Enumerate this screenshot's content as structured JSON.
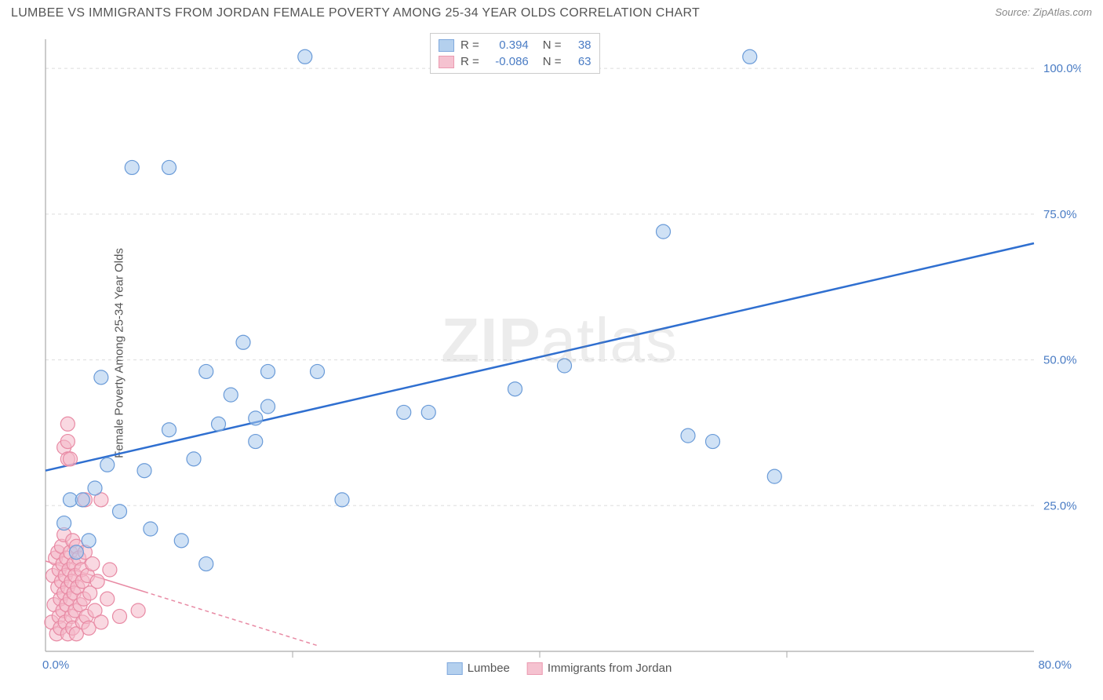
{
  "title": "LUMBEE VS IMMIGRANTS FROM JORDAN FEMALE POVERTY AMONG 25-34 YEAR OLDS CORRELATION CHART",
  "source": "Source: ZipAtlas.com",
  "watermark_a": "ZIP",
  "watermark_b": "atlas",
  "y_axis_label": "Female Poverty Among 25-34 Year Olds",
  "chart": {
    "type": "scatter",
    "background_color": "#ffffff",
    "grid_color": "#dddddd",
    "grid_dash": "4,4",
    "axis_line_color": "#aaaaaa",
    "tick_label_color": "#4a7cc4",
    "tick_fontsize": 15,
    "label_fontsize": 15,
    "label_color": "#555555",
    "xlim": [
      0,
      80
    ],
    "ylim": [
      0,
      105
    ],
    "x_ticks_labeled": [
      {
        "v": 0,
        "label": "0.0%"
      },
      {
        "v": 80,
        "label": "80.0%"
      }
    ],
    "x_ticks_unlabeled": [
      20,
      40,
      60
    ],
    "y_ticks": [
      {
        "v": 25,
        "label": "25.0%"
      },
      {
        "v": 50,
        "label": "50.0%"
      },
      {
        "v": 75,
        "label": "75.0%"
      },
      {
        "v": 100,
        "label": "100.0%"
      }
    ],
    "series": [
      {
        "name": "Lumbee",
        "fill_color": "#a8c8ec",
        "fill_opacity": 0.55,
        "stroke_color": "#6a9bd8",
        "stroke_width": 1.2,
        "marker_radius": 9,
        "R_label": "R =",
        "R": "0.394",
        "N_label": "N =",
        "N": "38",
        "trend": {
          "x1": 0,
          "y1": 31,
          "x2": 80,
          "y2": 70,
          "color": "#2f6fd0",
          "width": 2.5,
          "dash": "none"
        },
        "points": [
          {
            "x": 1.5,
            "y": 22
          },
          {
            "x": 2,
            "y": 26
          },
          {
            "x": 2.5,
            "y": 17
          },
          {
            "x": 3,
            "y": 26
          },
          {
            "x": 3.5,
            "y": 19
          },
          {
            "x": 4,
            "y": 28
          },
          {
            "x": 4.5,
            "y": 47
          },
          {
            "x": 5,
            "y": 32
          },
          {
            "x": 6,
            "y": 24
          },
          {
            "x": 7,
            "y": 83
          },
          {
            "x": 8,
            "y": 31
          },
          {
            "x": 8.5,
            "y": 21
          },
          {
            "x": 10,
            "y": 83
          },
          {
            "x": 10,
            "y": 38
          },
          {
            "x": 11,
            "y": 19
          },
          {
            "x": 12,
            "y": 33
          },
          {
            "x": 13,
            "y": 48
          },
          {
            "x": 13,
            "y": 15
          },
          {
            "x": 14,
            "y": 39
          },
          {
            "x": 15,
            "y": 44
          },
          {
            "x": 16,
            "y": 53
          },
          {
            "x": 17,
            "y": 36
          },
          {
            "x": 17,
            "y": 40
          },
          {
            "x": 18,
            "y": 48
          },
          {
            "x": 18,
            "y": 42
          },
          {
            "x": 21,
            "y": 102
          },
          {
            "x": 22,
            "y": 48
          },
          {
            "x": 24,
            "y": 26
          },
          {
            "x": 29,
            "y": 41
          },
          {
            "x": 31,
            "y": 41
          },
          {
            "x": 34,
            "y": 102
          },
          {
            "x": 38,
            "y": 45
          },
          {
            "x": 42,
            "y": 49
          },
          {
            "x": 50,
            "y": 72
          },
          {
            "x": 52,
            "y": 37
          },
          {
            "x": 54,
            "y": 36
          },
          {
            "x": 57,
            "y": 102
          },
          {
            "x": 59,
            "y": 30
          }
        ]
      },
      {
        "name": "Immigrants from Jordan",
        "fill_color": "#f4b8c8",
        "fill_opacity": 0.55,
        "stroke_color": "#e88aa4",
        "stroke_width": 1.2,
        "marker_radius": 9,
        "R_label": "R =",
        "R": "-0.086",
        "N_label": "N =",
        "N": "63",
        "trend": {
          "x1": 0,
          "y1": 15.5,
          "x2": 22,
          "y2": 1,
          "color": "#e88aa4",
          "width": 1.5,
          "dash": "5,4",
          "solid_until_x": 8
        },
        "points": [
          {
            "x": 0.5,
            "y": 5
          },
          {
            "x": 0.6,
            "y": 13
          },
          {
            "x": 0.7,
            "y": 8
          },
          {
            "x": 0.8,
            "y": 16
          },
          {
            "x": 0.9,
            "y": 3
          },
          {
            "x": 1.0,
            "y": 11
          },
          {
            "x": 1.0,
            "y": 17
          },
          {
            "x": 1.1,
            "y": 6
          },
          {
            "x": 1.1,
            "y": 14
          },
          {
            "x": 1.2,
            "y": 9
          },
          {
            "x": 1.2,
            "y": 4
          },
          {
            "x": 1.3,
            "y": 18
          },
          {
            "x": 1.3,
            "y": 12
          },
          {
            "x": 1.4,
            "y": 15
          },
          {
            "x": 1.4,
            "y": 7
          },
          {
            "x": 1.5,
            "y": 10
          },
          {
            "x": 1.5,
            "y": 20
          },
          {
            "x": 1.5,
            "y": 35
          },
          {
            "x": 1.6,
            "y": 13
          },
          {
            "x": 1.6,
            "y": 5
          },
          {
            "x": 1.7,
            "y": 16
          },
          {
            "x": 1.7,
            "y": 8
          },
          {
            "x": 1.8,
            "y": 11
          },
          {
            "x": 1.8,
            "y": 3
          },
          {
            "x": 1.8,
            "y": 33
          },
          {
            "x": 1.8,
            "y": 36
          },
          {
            "x": 1.8,
            "y": 39
          },
          {
            "x": 1.9,
            "y": 14
          },
          {
            "x": 2.0,
            "y": 9
          },
          {
            "x": 2.0,
            "y": 17
          },
          {
            "x": 2.0,
            "y": 33
          },
          {
            "x": 2.1,
            "y": 6
          },
          {
            "x": 2.1,
            "y": 12
          },
          {
            "x": 2.2,
            "y": 19
          },
          {
            "x": 2.2,
            "y": 4
          },
          {
            "x": 2.3,
            "y": 15
          },
          {
            "x": 2.3,
            "y": 10
          },
          {
            "x": 2.4,
            "y": 7
          },
          {
            "x": 2.4,
            "y": 13
          },
          {
            "x": 2.5,
            "y": 18
          },
          {
            "x": 2.5,
            "y": 3
          },
          {
            "x": 2.6,
            "y": 11
          },
          {
            "x": 2.7,
            "y": 16
          },
          {
            "x": 2.8,
            "y": 8
          },
          {
            "x": 2.9,
            "y": 14
          },
          {
            "x": 3.0,
            "y": 5
          },
          {
            "x": 3.0,
            "y": 12
          },
          {
            "x": 3.1,
            "y": 9
          },
          {
            "x": 3.2,
            "y": 17
          },
          {
            "x": 3.2,
            "y": 26
          },
          {
            "x": 3.3,
            "y": 6
          },
          {
            "x": 3.4,
            "y": 13
          },
          {
            "x": 3.5,
            "y": 4
          },
          {
            "x": 3.6,
            "y": 10
          },
          {
            "x": 3.8,
            "y": 15
          },
          {
            "x": 4.0,
            "y": 7
          },
          {
            "x": 4.2,
            "y": 12
          },
          {
            "x": 4.5,
            "y": 26
          },
          {
            "x": 4.5,
            "y": 5
          },
          {
            "x": 5.0,
            "y": 9
          },
          {
            "x": 5.2,
            "y": 14
          },
          {
            "x": 6.0,
            "y": 6
          },
          {
            "x": 7.5,
            "y": 7
          }
        ]
      }
    ]
  }
}
